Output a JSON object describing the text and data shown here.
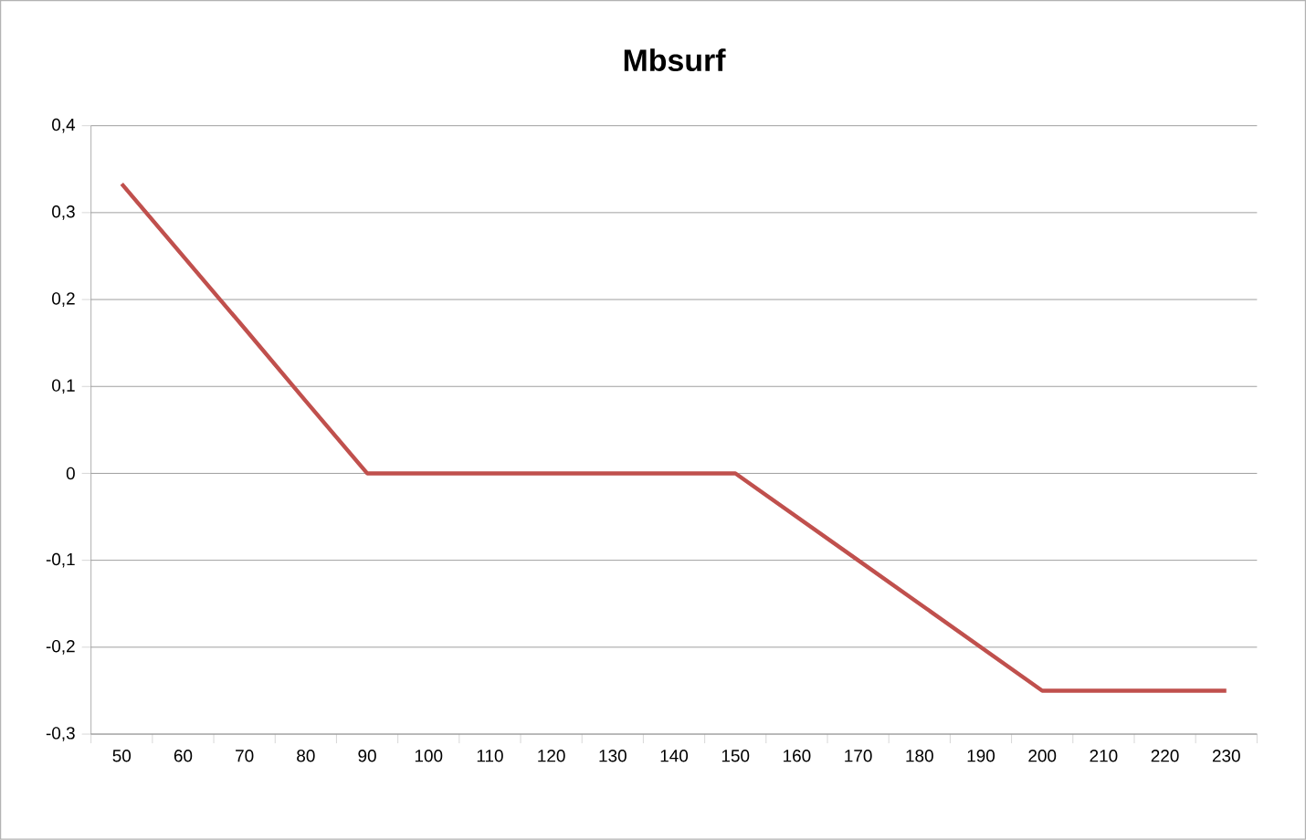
{
  "chart_data": {
    "type": "line",
    "title": "Mbsurf",
    "categories": [
      "50",
      "60",
      "70",
      "80",
      "90",
      "100",
      "110",
      "120",
      "130",
      "140",
      "150",
      "160",
      "170",
      "180",
      "190",
      "200",
      "210",
      "220",
      "230"
    ],
    "series": [
      {
        "color": "#c0504d",
        "values": [
          0.333,
          0.25,
          0.167,
          0.083,
          0,
          0,
          0,
          0,
          0,
          0,
          0,
          -0.05,
          -0.1,
          -0.15,
          -0.2,
          -0.25,
          -0.25,
          -0.25,
          -0.25
        ]
      }
    ],
    "ylim": [
      -0.3,
      0.4
    ],
    "yticks": [
      {
        "value": -0.3,
        "label": "-0,3"
      },
      {
        "value": -0.2,
        "label": "-0,2"
      },
      {
        "value": -0.1,
        "label": "-0,1"
      },
      0,
      {
        "value": 0.1,
        "label": "0,1"
      },
      {
        "value": 0.2,
        "label": "0,2"
      },
      {
        "value": 0.3,
        "label": "0,3"
      },
      {
        "value": 0.4,
        "label": "0,4"
      }
    ],
    "grid": "y",
    "marker": "none",
    "line_style": "solid"
  }
}
